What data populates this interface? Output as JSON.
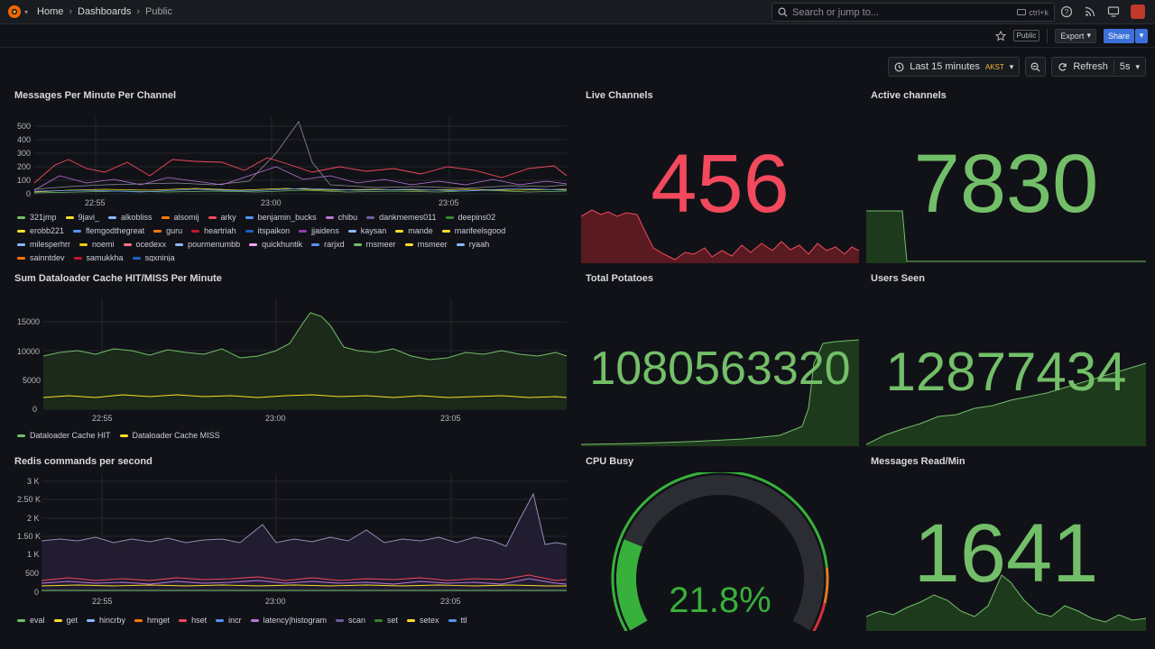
{
  "breadcrumb": {
    "home": "Home",
    "dashboards": "Dashboards",
    "current": "Public"
  },
  "search": {
    "placeholder": "Search or jump to...",
    "shortcut": "ctrl+k"
  },
  "toolbar": {
    "public_badge": "Public",
    "export_label": "Export",
    "share_label": "Share"
  },
  "time": {
    "range_label": "Last 15 minutes",
    "timezone": "AKST",
    "refresh_label": "Refresh",
    "refresh_interval": "5s"
  },
  "colors": {
    "accent": "#3d71d9",
    "green": "#73bf69",
    "red": "#f2495c",
    "bg": "#111217"
  },
  "panels": {
    "messages_per_minute": {
      "title": "Messages Per Minute Per Channel",
      "y_ticks": [
        "500",
        "400",
        "300",
        "200",
        "100",
        "0"
      ],
      "x_ticks": [
        "22:55",
        "23:00",
        "23:05"
      ],
      "legend": [
        {
          "name": "321jmp",
          "color": "#73bf69"
        },
        {
          "name": "9javi_",
          "color": "#fade2a"
        },
        {
          "name": "alkobliss",
          "color": "#8ab8ff"
        },
        {
          "name": "alsomij",
          "color": "#ff780a"
        },
        {
          "name": "arky",
          "color": "#f2495c"
        },
        {
          "name": "benjamin_bucks",
          "color": "#5794f2"
        },
        {
          "name": "chibu",
          "color": "#b877d9"
        },
        {
          "name": "dankmemes011",
          "color": "#705da0"
        },
        {
          "name": "deepins02",
          "color": "#37872d"
        },
        {
          "name": "erobb221",
          "color": "#fade2a"
        },
        {
          "name": "flemgodthegreat",
          "color": "#5794f2"
        },
        {
          "name": "guru",
          "color": "#ff780a"
        },
        {
          "name": "heartriah",
          "color": "#c4162a"
        },
        {
          "name": "itspaikon",
          "color": "#1f60c4"
        },
        {
          "name": "jjaidens",
          "color": "#8f3bb8"
        },
        {
          "name": "kaysan",
          "color": "#8ab8ff"
        },
        {
          "name": "mande",
          "color": "#fade2a"
        },
        {
          "name": "marifeelsgood",
          "color": "#fade2a"
        },
        {
          "name": "milesperhrr",
          "color": "#8ab8ff"
        },
        {
          "name": "noemi",
          "color": "#f2cc0c"
        },
        {
          "name": "ocedexx",
          "color": "#ff7383"
        },
        {
          "name": "pourmenumbb",
          "color": "#8ab8ff"
        },
        {
          "name": "quickhuntik",
          "color": "#f5a3ff"
        },
        {
          "name": "rarjxd",
          "color": "#5794f2"
        },
        {
          "name": "rnsmeer",
          "color": "#73bf69"
        },
        {
          "name": "rnsmeer",
          "color": "#fade2a"
        },
        {
          "name": "ryaah",
          "color": "#8ab8ff"
        },
        {
          "name": "sainntdev",
          "color": "#ff780a"
        },
        {
          "name": "samukkha",
          "color": "#c4162a"
        },
        {
          "name": "sgxninja_",
          "color": "#1f60c4"
        }
      ]
    },
    "live_channels": {
      "title": "Live Channels",
      "value": "456",
      "color": "#f2495c"
    },
    "active_channels": {
      "title": "Active channels",
      "value": "7830",
      "color": "#73bf69"
    },
    "dataloader": {
      "title": "Sum Dataloader Cache HIT/MISS Per Minute",
      "y_ticks": [
        "15000",
        "10000",
        "5000",
        "0"
      ],
      "x_ticks": [
        "22:55",
        "23:00",
        "23:05"
      ],
      "legend": [
        {
          "name": "Dataloader Cache HIT",
          "color": "#73bf69"
        },
        {
          "name": "Dataloader Cache MISS",
          "color": "#fade2a"
        }
      ]
    },
    "total_potatoes": {
      "title": "Total Potatoes",
      "value": "1080563320",
      "color": "#73bf69"
    },
    "users_seen": {
      "title": "Users Seen",
      "value": "12877434",
      "color": "#73bf69"
    },
    "redis": {
      "title": "Redis commands per second",
      "y_ticks": [
        "3 K",
        "2.50 K",
        "2 K",
        "1.50 K",
        "1 K",
        "500",
        "0"
      ],
      "x_ticks": [
        "22:55",
        "23:00",
        "23:05"
      ],
      "legend": [
        {
          "name": "eval",
          "color": "#73bf69"
        },
        {
          "name": "get",
          "color": "#fade2a"
        },
        {
          "name": "hincrby",
          "color": "#8ab8ff"
        },
        {
          "name": "hmget",
          "color": "#ff780a"
        },
        {
          "name": "hset",
          "color": "#f2495c"
        },
        {
          "name": "incr",
          "color": "#5794f2"
        },
        {
          "name": "latency|histogram",
          "color": "#b877d9"
        },
        {
          "name": "scan",
          "color": "#705da0"
        },
        {
          "name": "set",
          "color": "#37872d"
        },
        {
          "name": "setex",
          "color": "#fade2a"
        },
        {
          "name": "ttl",
          "color": "#5794f2"
        }
      ]
    },
    "cpu_busy": {
      "title": "CPU Busy",
      "value": "21.8%",
      "percent": 21.8
    },
    "messages_read": {
      "title": "Messages Read/Min",
      "value": "1641",
      "color": "#73bf69"
    }
  }
}
